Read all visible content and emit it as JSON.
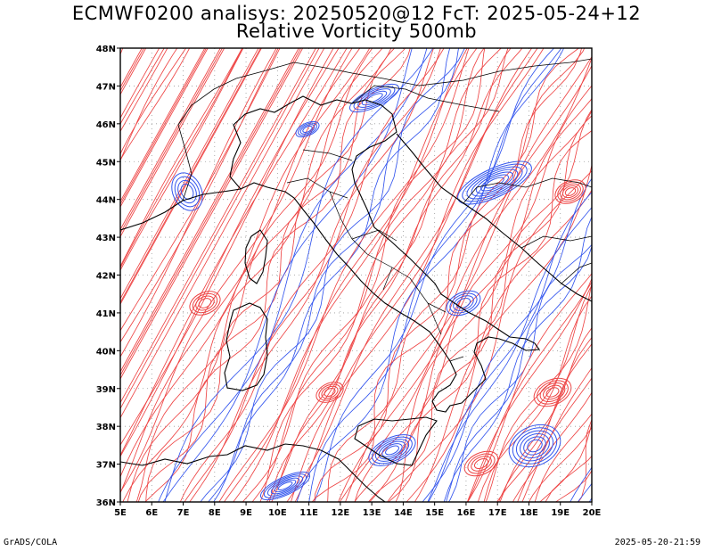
{
  "title": {
    "line1": "ECMWF0200 analisys: 20250520@12 FcT: 2025-05-24+12",
    "line2": "Relative Vorticity 500mb"
  },
  "map": {
    "lon_range": [
      5,
      20
    ],
    "lat_range": [
      36,
      48
    ],
    "lon_labels": [
      "5E",
      "6E",
      "7E",
      "8E",
      "9E",
      "10E",
      "11E",
      "12E",
      "13E",
      "14E",
      "15E",
      "16E",
      "17E",
      "18E",
      "19E",
      "20E"
    ],
    "lat_labels": [
      "36N",
      "37N",
      "38N",
      "39N",
      "40N",
      "41N",
      "42N",
      "43N",
      "44N",
      "45N",
      "46N",
      "47N",
      "48N"
    ],
    "colors": {
      "positive_contour": "#ee4444",
      "negative_contour": "#3355ee",
      "coastline": "#000000",
      "grid": "#999999"
    }
  },
  "footer": {
    "left": "GrADS/COLA",
    "right": "2025-05-20-21:59"
  }
}
